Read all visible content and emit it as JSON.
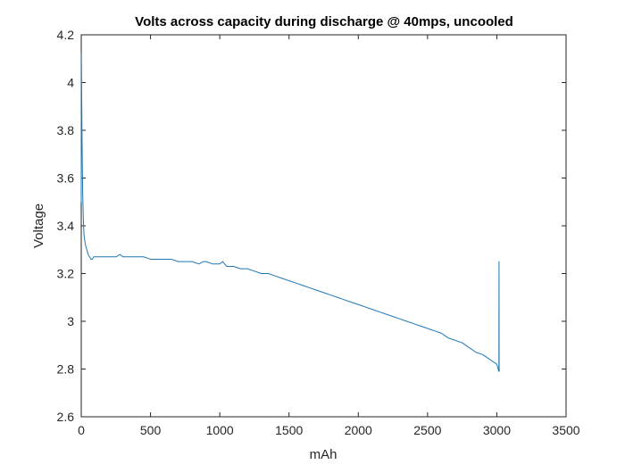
{
  "chart_data": {
    "type": "line",
    "title": "Volts across capacity during discharge @ 40mps, uncooled",
    "xlabel": "mAh",
    "ylabel": "Voltage",
    "xlim": [
      0,
      3500
    ],
    "ylim": [
      2.6,
      4.2
    ],
    "xticks": [
      0,
      500,
      1000,
      1500,
      2000,
      2500,
      3000,
      3500
    ],
    "yticks": [
      2.6,
      2.8,
      3,
      3.2,
      3.4,
      3.6,
      3.8,
      4,
      4.2
    ],
    "xtick_labels": [
      "0",
      "500",
      "1000",
      "1500",
      "2000",
      "2500",
      "3000",
      "3500"
    ],
    "ytick_labels": [
      "2.6",
      "2.8",
      "3",
      "3.2",
      "3.4",
      "3.6",
      "3.8",
      "4",
      "4.2"
    ],
    "grid": false,
    "colors": {
      "line": "#1f77b4",
      "axes": "#262626"
    },
    "series": [
      {
        "x": [
          0,
          1,
          3,
          6,
          10,
          15,
          20,
          30,
          40,
          50,
          60,
          70,
          80,
          90,
          100,
          120,
          150,
          200,
          250,
          280,
          300,
          350,
          400,
          450,
          500,
          550,
          600,
          650,
          700,
          750,
          800,
          850,
          880,
          900,
          950,
          1000,
          1020,
          1050,
          1100,
          1150,
          1200,
          1250,
          1300,
          1350,
          1400,
          1450,
          1500,
          1550,
          1600,
          1650,
          1700,
          1750,
          1800,
          1850,
          1900,
          1950,
          2000,
          2050,
          2100,
          2150,
          2200,
          2250,
          2300,
          2350,
          2400,
          2450,
          2500,
          2550,
          2600,
          2650,
          2700,
          2750,
          2800,
          2850,
          2900,
          2950,
          3000,
          3010,
          3015,
          3016,
          3017,
          3018
        ],
        "y": [
          3.5,
          4.12,
          3.95,
          3.75,
          3.55,
          3.43,
          3.36,
          3.32,
          3.3,
          3.28,
          3.27,
          3.26,
          3.26,
          3.27,
          3.27,
          3.27,
          3.27,
          3.27,
          3.27,
          3.28,
          3.27,
          3.27,
          3.27,
          3.27,
          3.26,
          3.26,
          3.26,
          3.26,
          3.25,
          3.25,
          3.25,
          3.24,
          3.25,
          3.25,
          3.24,
          3.24,
          3.25,
          3.23,
          3.23,
          3.22,
          3.22,
          3.21,
          3.2,
          3.2,
          3.19,
          3.18,
          3.17,
          3.16,
          3.15,
          3.14,
          3.13,
          3.12,
          3.11,
          3.1,
          3.09,
          3.08,
          3.07,
          3.06,
          3.05,
          3.04,
          3.03,
          3.02,
          3.01,
          3.0,
          2.99,
          2.98,
          2.97,
          2.96,
          2.95,
          2.93,
          2.92,
          2.91,
          2.89,
          2.87,
          2.86,
          2.84,
          2.82,
          2.8,
          2.79,
          3.25,
          2.8,
          2.79
        ]
      }
    ]
  }
}
